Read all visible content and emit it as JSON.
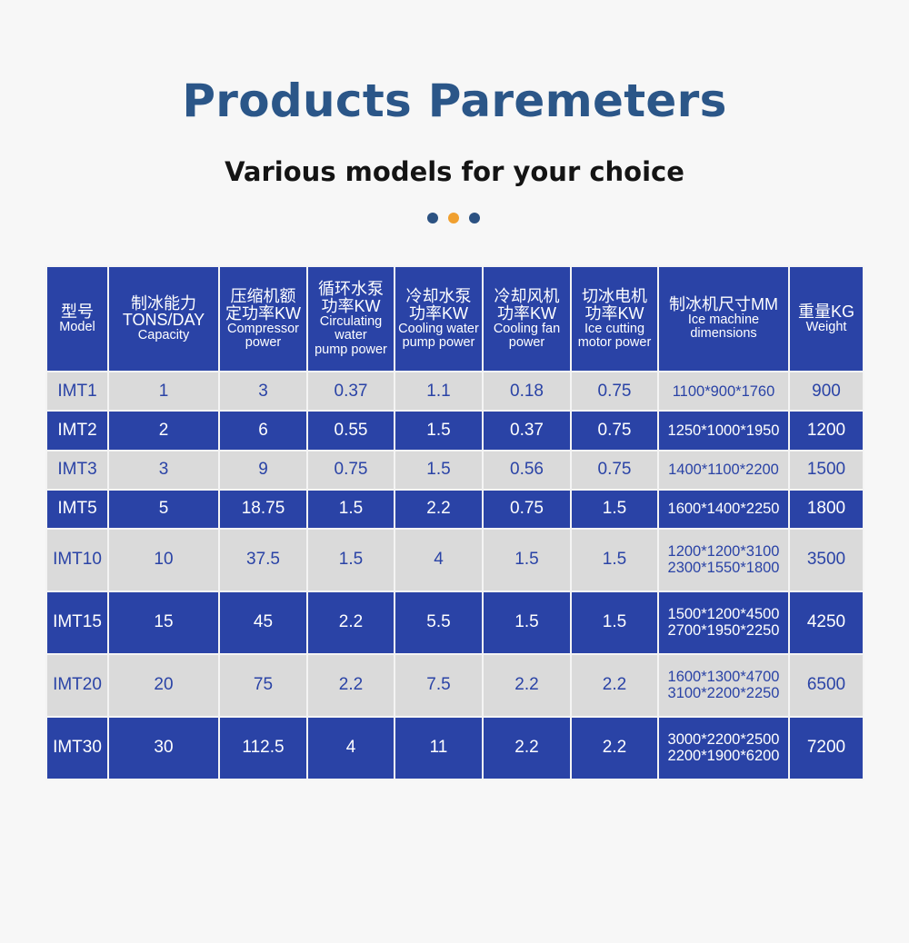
{
  "header": {
    "title": "Products Paremeters",
    "subtitle": "Various models for your choice",
    "dot_colors": [
      "#2c5282",
      "#f0a030",
      "#2c5282"
    ]
  },
  "colors": {
    "header_bg": "#2a43a6",
    "dark_row_bg": "#2a43a6",
    "light_row_bg": "#dadada",
    "title": "#2b5688"
  },
  "table": {
    "columns": [
      {
        "cn": "型号",
        "en": "Model"
      },
      {
        "cn": "制冰能力",
        "big": "TONS/DAY",
        "en": "Capacity"
      },
      {
        "cn": "压缩机额",
        "cn2": "定功率KW",
        "en": "Compressor",
        "en2": "power"
      },
      {
        "cn": "循环水泵",
        "cn2": "功率KW",
        "en": "Circulating",
        "en2": "water",
        "en3": "pump power"
      },
      {
        "cn": "冷却水泵",
        "cn2": "功率KW",
        "en": "Cooling water",
        "en2": "pump power"
      },
      {
        "cn": "冷却风机",
        "cn2": "功率KW",
        "en": "Cooling fan",
        "en2": "power"
      },
      {
        "cn": "切冰电机",
        "cn2": "功率KW",
        "en": "Ice cutting",
        "en2": "motor power"
      },
      {
        "cn": "制冰机尺寸MM",
        "en": "Ice machine",
        "en2": "dimensions"
      },
      {
        "cn": "重量KG",
        "en": "Weight"
      }
    ],
    "rows": [
      {
        "model": "IMT1",
        "capacity": "1",
        "compressor": "3",
        "circ_pump": "0.37",
        "cool_pump": "1.1",
        "cool_fan": "0.18",
        "ice_motor": "0.75",
        "dim1": "1100*900*1760",
        "dim2": "",
        "weight": "900"
      },
      {
        "model": "IMT2",
        "capacity": "2",
        "compressor": "6",
        "circ_pump": "0.55",
        "cool_pump": "1.5",
        "cool_fan": "0.37",
        "ice_motor": "0.75",
        "dim1": "1250*1000*1950",
        "dim2": "",
        "weight": "1200"
      },
      {
        "model": "IMT3",
        "capacity": "3",
        "compressor": "9",
        "circ_pump": "0.75",
        "cool_pump": "1.5",
        "cool_fan": "0.56",
        "ice_motor": "0.75",
        "dim1": "1400*1100*2200",
        "dim2": "",
        "weight": "1500"
      },
      {
        "model": "IMT5",
        "capacity": "5",
        "compressor": "18.75",
        "circ_pump": "1.5",
        "cool_pump": "2.2",
        "cool_fan": "0.75",
        "ice_motor": "1.5",
        "dim1": "1600*1400*2250",
        "dim2": "",
        "weight": "1800"
      },
      {
        "model": "IMT10",
        "capacity": "10",
        "compressor": "37.5",
        "circ_pump": "1.5",
        "cool_pump": "4",
        "cool_fan": "1.5",
        "ice_motor": "1.5",
        "dim1": "1200*1200*3100",
        "dim2": "2300*1550*1800",
        "weight": "3500"
      },
      {
        "model": "IMT15",
        "capacity": "15",
        "compressor": "45",
        "circ_pump": "2.2",
        "cool_pump": "5.5",
        "cool_fan": "1.5",
        "ice_motor": "1.5",
        "dim1": "1500*1200*4500",
        "dim2": "2700*1950*2250",
        "weight": "4250"
      },
      {
        "model": "IMT20",
        "capacity": "20",
        "compressor": "75",
        "circ_pump": "2.2",
        "cool_pump": "7.5",
        "cool_fan": "2.2",
        "ice_motor": "2.2",
        "dim1": "1600*1300*4700",
        "dim2": "3100*2200*2250",
        "weight": "6500"
      },
      {
        "model": "IMT30",
        "capacity": "30",
        "compressor": "112.5",
        "circ_pump": "4",
        "cool_pump": "11",
        "cool_fan": "2.2",
        "ice_motor": "2.2",
        "dim1": "3000*2200*2500",
        "dim2": "2200*1900*6200",
        "weight": "7200"
      }
    ]
  }
}
